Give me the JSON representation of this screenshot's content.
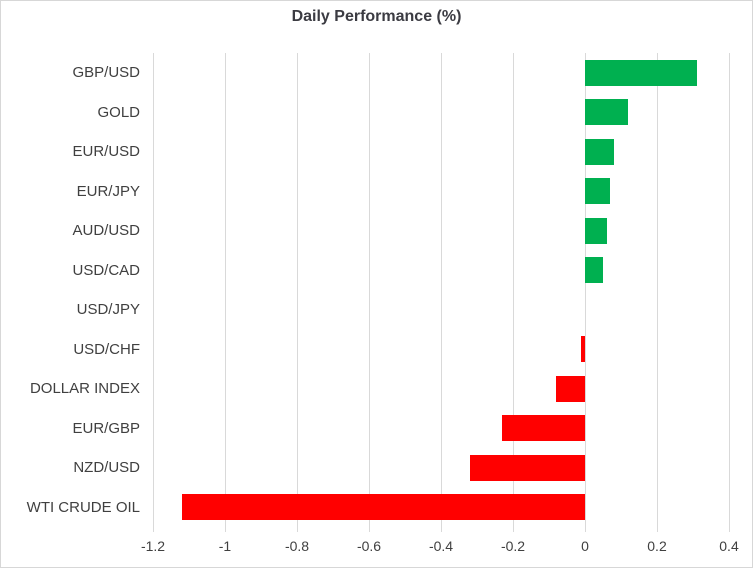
{
  "chart_data": {
    "type": "bar",
    "orientation": "horizontal",
    "title": "Daily Performance (%)",
    "categories": [
      "GBP/USD",
      "GOLD",
      "EUR/USD",
      "EUR/JPY",
      "AUD/USD",
      "USD/CAD",
      "USD/JPY",
      "USD/CHF",
      "DOLLAR INDEX",
      "EUR/GBP",
      "NZD/USD",
      "WTI CRUDE OIL"
    ],
    "values": [
      0.31,
      0.12,
      0.08,
      0.07,
      0.06,
      0.05,
      0.0,
      -0.01,
      -0.08,
      -0.23,
      -0.32,
      -1.12
    ],
    "xlabel": "",
    "ylabel": "",
    "xlim": [
      -1.2,
      0.4
    ],
    "xticks": [
      -1.2,
      -1,
      -0.8,
      -0.6,
      -0.4,
      -0.2,
      0,
      0.2,
      0.4
    ],
    "xtick_labels": [
      "-1.2",
      "-1",
      "-0.8",
      "-0.6",
      "-0.4",
      "-0.2",
      "0",
      "0.2",
      "0.4"
    ],
    "grid": true,
    "legend": false,
    "colors": {
      "positive": "#00B050",
      "negative": "#FF0000",
      "gridline": "#D9D9D9",
      "text": "#404040",
      "title_text": "#3B3B42",
      "background": "#FFFFFF",
      "border": "#D7D7D7"
    }
  }
}
